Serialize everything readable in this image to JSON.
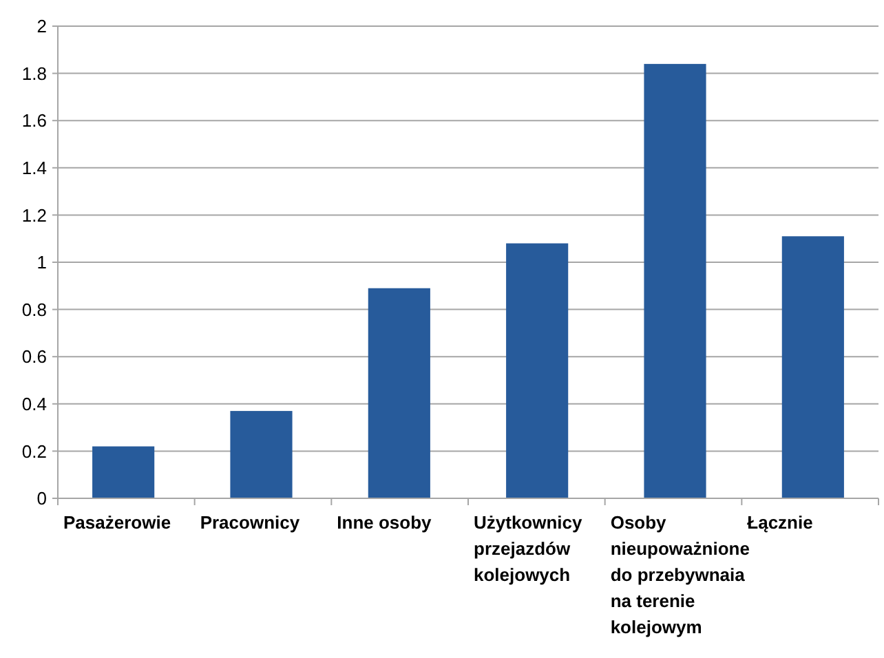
{
  "chart_data": {
    "type": "bar",
    "categories": [
      "Pasażerowie",
      "Pracownicy",
      "Inne osoby",
      "Użytkownicy przejazdów kolejowych",
      "Osoby nieupoważnione do przebywnaia na terenie kolejowym",
      "Łącznie"
    ],
    "values": [
      0.22,
      0.37,
      0.89,
      1.08,
      1.84,
      1.11
    ],
    "color": "#275b9b",
    "ylim": [
      0,
      2
    ],
    "yticks": [
      0,
      0.2,
      0.4,
      0.6,
      0.8,
      1,
      1.2,
      1.4,
      1.6,
      1.8,
      2
    ],
    "grid": "y"
  }
}
